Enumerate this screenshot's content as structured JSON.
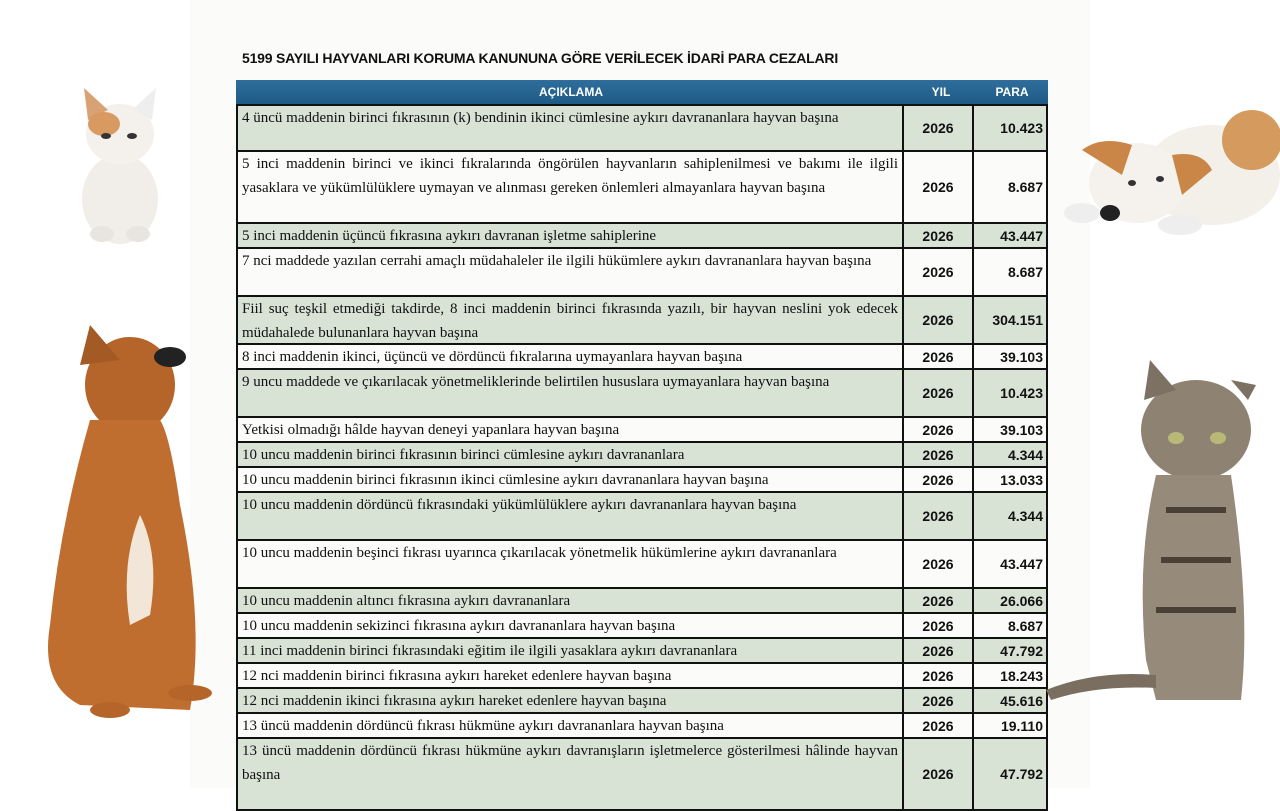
{
  "title": "5199 SAYILI HAYVANLARI KORUMA KANUNUNA GÖRE VERİLECEK İDARİ PARA CEZALARI",
  "headers": {
    "description": "AÇIKLAMA",
    "year": "YIL",
    "amount": "PARA"
  },
  "rows": [
    {
      "description": "4 üncü maddenin birinci fıkrasının (k) bendinin ikinci cümlesine aykırı davrananlara hayvan başına",
      "year": "2026",
      "amount": "10.423"
    },
    {
      "description": "5 inci maddenin birinci ve ikinci fıkralarında öngörülen hayvanların sahiplenilmesi ve bakımı ile ilgili yasaklara ve yükümlülüklere uymayan ve alınması gereken önlemleri almayanlara hayvan başına",
      "year": "2026",
      "amount": "8.687"
    },
    {
      "description": "5 inci maddenin üçüncü fıkrasına aykırı davranan işletme sahiplerine",
      "year": "2026",
      "amount": "43.447"
    },
    {
      "description": "7 nci maddede yazılan cerrahi amaçlı müdahaleler ile ilgili hükümlere aykırı davrananlara hayvan başına",
      "year": "2026",
      "amount": "8.687"
    },
    {
      "description": "Fiil suç teşkil etmediği takdirde, 8 inci maddenin birinci fıkrasında yazılı, bir hayvan neslini yok edecek müdahalede bulunanlara hayvan başına",
      "year": "2026",
      "amount": "304.151"
    },
    {
      "description": "8 inci maddenin ikinci, üçüncü ve dördüncü fıkralarına uymayanlara hayvan başına",
      "year": "2026",
      "amount": "39.103"
    },
    {
      "description": "9 uncu maddede ve çıkarılacak yönetmeliklerinde belirtilen hususlara uymayanlara hayvan başına",
      "year": "2026",
      "amount": "10.423"
    },
    {
      "description": "Yetkisi olmadığı hâlde hayvan deneyi yapanlara hayvan başına",
      "year": "2026",
      "amount": "39.103"
    },
    {
      "description": "10 uncu maddenin birinci fıkrasının birinci cümlesine aykırı davrananlara",
      "year": "2026",
      "amount": "4.344"
    },
    {
      "description": "10 uncu maddenin birinci fıkrasının ikinci cümlesine aykırı davrananlara hayvan başına",
      "year": "2026",
      "amount": "13.033"
    },
    {
      "description": "10 uncu maddenin dördüncü fıkrasındaki yükümlülüklere aykırı davrananlara hayvan başına",
      "year": "2026",
      "amount": "4.344"
    },
    {
      "description": "10 uncu maddenin beşinci fıkrası uyarınca çıkarılacak yönetmelik hükümlerine aykırı davrananlara",
      "year": "2026",
      "amount": "43.447"
    },
    {
      "description": "10 uncu maddenin altıncı fıkrasına aykırı davrananlara",
      "year": "2026",
      "amount": "26.066"
    },
    {
      "description": "10 uncu maddenin sekizinci fıkrasına aykırı davrananlara hayvan başına",
      "year": "2026",
      "amount": "8.687"
    },
    {
      "description": "11 inci maddenin birinci fıkrasındaki eğitim ile ilgili yasaklara aykırı davrananlara",
      "year": "2026",
      "amount": "47.792"
    },
    {
      "description": "12 nci maddenin birinci fıkrasına aykırı hareket edenlere hayvan başına",
      "year": "2026",
      "amount": "18.243"
    },
    {
      "description": "12 nci maddenin ikinci fıkrasına aykırı hareket edenlere hayvan başına",
      "year": "2026",
      "amount": "45.616"
    },
    {
      "description": "13 üncü maddenin dördüncü fıkrası hükmüne aykırı davrananlara hayvan başına",
      "year": "2026",
      "amount": "19.110"
    },
    {
      "description": "13 üncü maddenin dördüncü fıkrası hükmüne aykırı davranışların işletmelerce gösterilmesi hâlinde hayvan başına",
      "year": "2026",
      "amount": "47.792"
    }
  ],
  "colors": {
    "header": "#1e5a86",
    "shade": "#d8e3d6"
  },
  "images": [
    "kitten-icon",
    "puppy-icon",
    "dog-icon",
    "tabby-cat-icon"
  ]
}
